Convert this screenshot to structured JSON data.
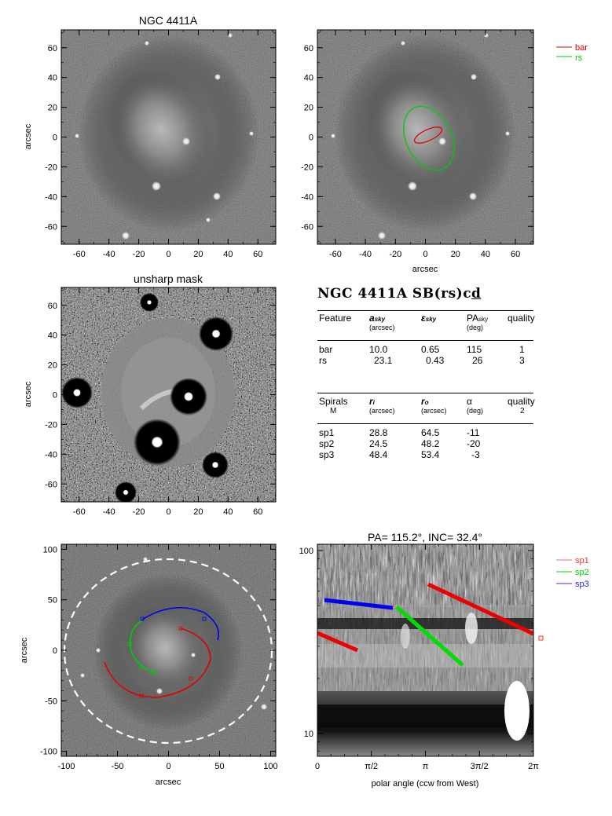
{
  "galaxy": "NGC 4411A",
  "panels": {
    "p1": {
      "title": "NGC 4411A",
      "ylabel": "arcsec",
      "xlabel": ""
    },
    "p2": {
      "xlabel": "arcsec",
      "legend": [
        {
          "label": "bar",
          "color": "#e00000"
        },
        {
          "label": "rs",
          "color": "#00cc00"
        }
      ]
    },
    "p3": {
      "title": "unsharp mask",
      "ylabel": "arcsec"
    },
    "p5": {
      "ylabel": "arcsec",
      "xlabel": "arcsec"
    },
    "p6": {
      "title": "PA= 115.2°, INC=  32.4°",
      "xlabel": "polar angle (ccw from West)",
      "legend": [
        {
          "label": "sp1",
          "color": "#ff6b6b"
        },
        {
          "label": "sp2",
          "color": "#00dd00"
        },
        {
          "label": "sp3",
          "color": "#3030ff"
        }
      ]
    }
  },
  "ticks": {
    "arcsec70": [
      "-60",
      "-40",
      "-20",
      "0",
      "20",
      "40",
      "60"
    ],
    "arcsec100": [
      "-100",
      "-50",
      "0",
      "50",
      "100"
    ],
    "polar": [
      "0",
      "π/2",
      "π",
      "3π/2",
      "2π"
    ],
    "radius": [
      "100",
      "10"
    ]
  },
  "table": {
    "title": "NGC 4411A  SB(rs)c",
    "title_underlined": "d",
    "features": {
      "headers": [
        "Feature",
        "a",
        "ε",
        "PA",
        "quality"
      ],
      "subscripts": [
        "sky",
        "sky",
        "sky"
      ],
      "units": [
        "(arcsec)",
        "",
        "(deg)"
      ],
      "rows": [
        [
          "bar",
          "10.0",
          "0.65",
          "115",
          "1"
        ],
        [
          "rs",
          "23.1",
          "0.43",
          "26",
          "3"
        ]
      ]
    },
    "spirals": {
      "headers": [
        "Spirals",
        "r",
        "r",
        "α",
        "quality"
      ],
      "subscripts": [
        "i",
        "o"
      ],
      "units": [
        "(arcsec)",
        "(arcsec)",
        "(deg)"
      ],
      "extra": [
        "M",
        "2"
      ],
      "rows": [
        [
          "sp1",
          "28.8",
          "64.5",
          "-11"
        ],
        [
          "sp2",
          "24.5",
          "48.2",
          "-20"
        ],
        [
          "sp3",
          "48.4",
          "53.4",
          "-3"
        ]
      ]
    }
  },
  "colors": {
    "bar": "#e00000",
    "rs": "#00cc00",
    "sp1": "#e00000",
    "sp2": "#00dd00",
    "sp3": "#0000ee"
  }
}
